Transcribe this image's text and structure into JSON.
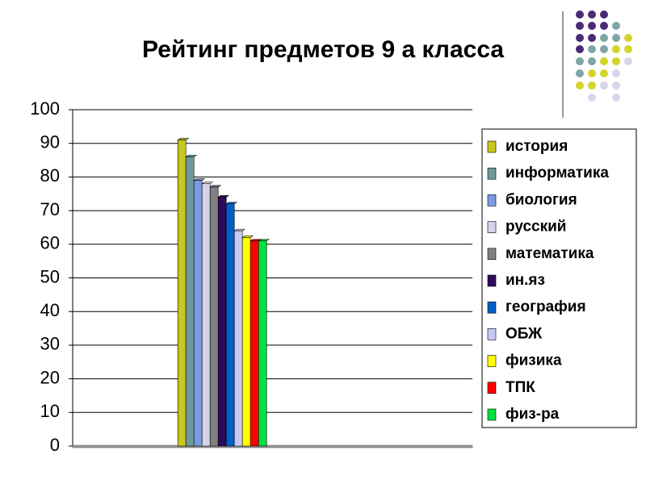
{
  "chart_data": {
    "type": "bar",
    "title": "Рейтинг предметов 9 а класса",
    "categories": [
      null
    ],
    "series": [
      {
        "name": "история",
        "color": "#c8c81e",
        "values": [
          91
        ]
      },
      {
        "name": "информатика",
        "color": "#6e9a9a",
        "values": [
          86
        ]
      },
      {
        "name": "биология",
        "color": "#7b9be0",
        "values": [
          79
        ]
      },
      {
        "name": "русский",
        "color": "#d4d4ea",
        "values": [
          78
        ]
      },
      {
        "name": "математика",
        "color": "#808080",
        "values": [
          77
        ]
      },
      {
        "name": "ин.яз",
        "color": "#2e0a5a",
        "values": [
          74
        ]
      },
      {
        "name": "география",
        "color": "#0060c8",
        "values": [
          72
        ]
      },
      {
        "name": "ОБЖ",
        "color": "#c8c8f4",
        "values": [
          64
        ]
      },
      {
        "name": "физика",
        "color": "#ffff00",
        "values": [
          62
        ]
      },
      {
        "name": "ТПК",
        "color": "#ff0000",
        "values": [
          61
        ]
      },
      {
        "name": "физ-ра",
        "color": "#00e040",
        "values": [
          61
        ]
      }
    ],
    "ylim": [
      0,
      100
    ],
    "yticks": [
      0,
      10,
      20,
      30,
      40,
      50,
      60,
      70,
      80,
      90,
      100
    ],
    "grid": true,
    "legend": "right"
  }
}
